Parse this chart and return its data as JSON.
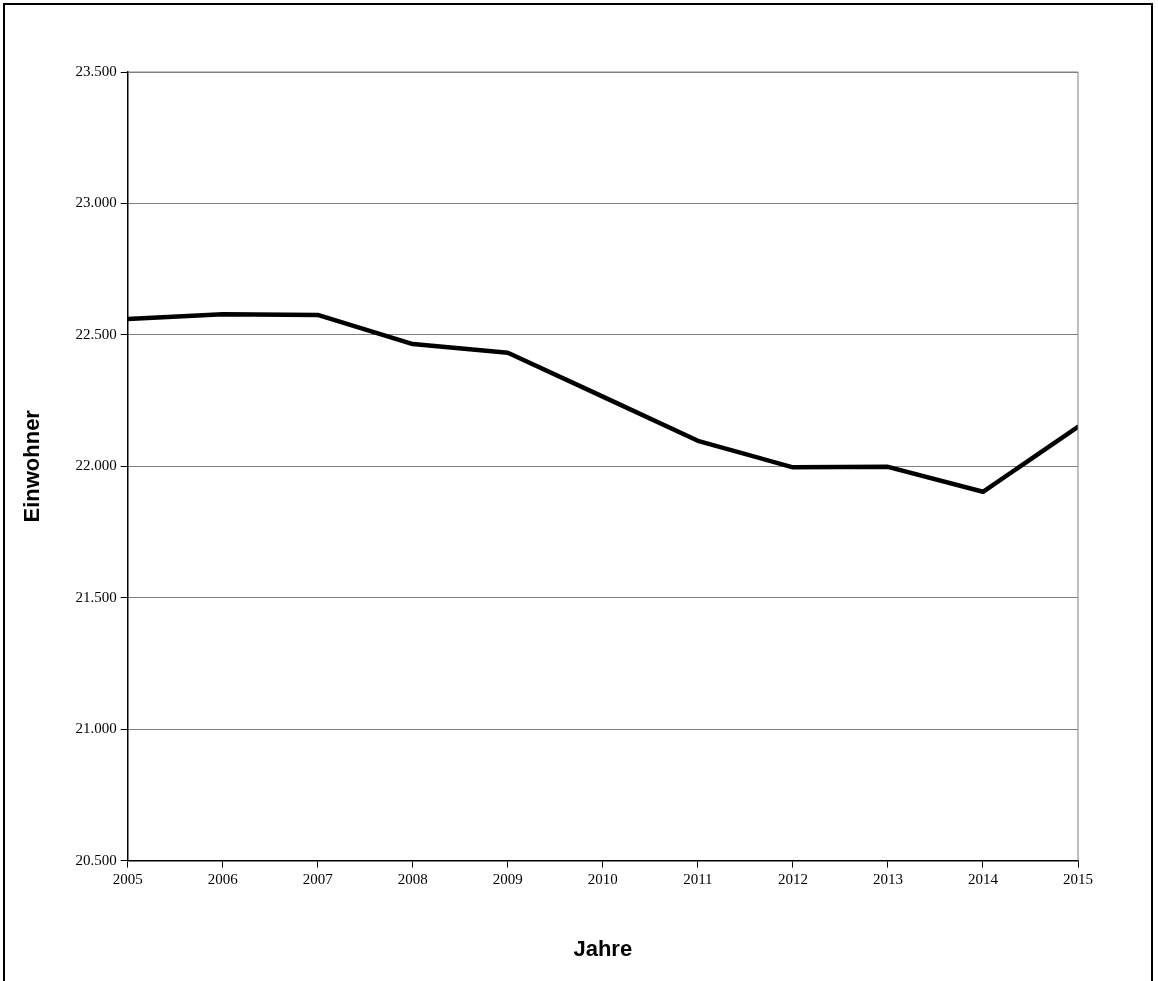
{
  "chart_data": {
    "type": "line",
    "xlabel": "Jahre",
    "ylabel": "Einwohner",
    "x": [
      2005,
      2006,
      2007,
      2008,
      2009,
      2010,
      2011,
      2012,
      2013,
      2014,
      2015
    ],
    "series": [
      {
        "color": "#000000",
        "values": [
          22560,
          22578,
          22576,
          22465,
          22432,
          22265,
          22097,
          21996,
          21998,
          21903,
          22150
        ]
      }
    ],
    "xlim": [
      2005,
      2015
    ],
    "xticks": [
      2005,
      2006,
      2007,
      2008,
      2009,
      2010,
      2011,
      2012,
      2013,
      2014,
      2015
    ],
    "ylim": [
      20500,
      23500
    ],
    "yticks": [
      {
        "value": 20500,
        "label": "20.500"
      },
      {
        "value": 21000,
        "label": "21.000"
      },
      {
        "value": 21500,
        "label": "21.500"
      },
      {
        "value": 22000,
        "label": "22.000"
      },
      {
        "value": 22500,
        "label": "22.500"
      },
      {
        "value": 23000,
        "label": "23.000"
      },
      {
        "value": 23500,
        "label": "23.500"
      }
    ],
    "grid": "y",
    "legend": false,
    "marker": "none",
    "line_style": "solid"
  }
}
